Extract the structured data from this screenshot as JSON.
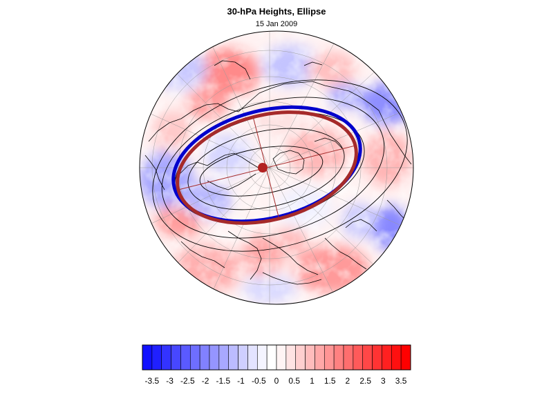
{
  "figure": {
    "title": "30-hPa Heights, Ellipse",
    "subtitle": "15 Jan 2009"
  },
  "colorbar": {
    "tick_labels": [
      "-3.5",
      "-3",
      "-2.5",
      "-2",
      "-1.5",
      "-1",
      "-0.5",
      "0",
      "0.5",
      "1",
      "1.5",
      "2",
      "2.5",
      "3",
      "3.5"
    ],
    "min": -3.5,
    "max": 3.5,
    "step": 0.25,
    "colors": [
      "#1010ff",
      "#2020ff",
      "#3333ff",
      "#4747ff",
      "#5a5aff",
      "#6e6eff",
      "#8181ff",
      "#9595ff",
      "#a8a8ff",
      "#bcbcff",
      "#cfcfff",
      "#e3e3ff",
      "#f4f4ff",
      "#ffffff",
      "#fff4f4",
      "#ffe3e3",
      "#ffcfcf",
      "#ffbcbc",
      "#ffa8a8",
      "#ff9595",
      "#ff8181",
      "#ff6e6e",
      "#ff5a5a",
      "#ff4747",
      "#ff3333",
      "#ff2020",
      "#ff1010",
      "#ff0000"
    ]
  },
  "map": {
    "projection": "polar stereographic, north pole",
    "overlays": [
      "height contours (black)",
      "fitted ellipse (blue)",
      "fitted ellipse (dark red)",
      "ellipse axes and centre (dark red)"
    ],
    "colors": {
      "ellipse_blue": "#0000cc",
      "ellipse_red": "#a52a2a",
      "contour": "#000000",
      "coast": "#000000",
      "grid": "#999999"
    }
  }
}
